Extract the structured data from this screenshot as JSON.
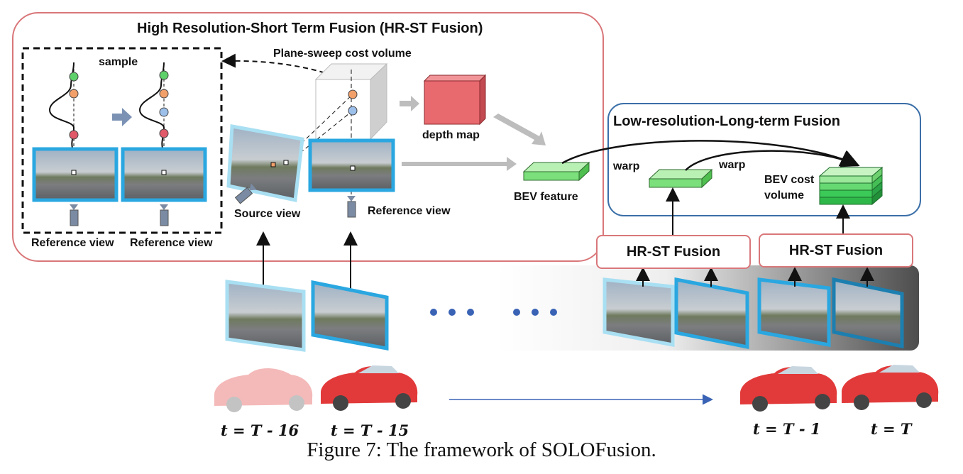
{
  "titles": {
    "hrst_box": "High Resolution-Short Term Fusion (HR-ST Fusion)",
    "lrlt_box": "Low-resolution-Long-term Fusion"
  },
  "labels": {
    "sample": "sample",
    "plane_sweep": "Plane-sweep cost volume",
    "depth_map": "depth map",
    "bev_feature": "BEV feature",
    "source_view": "Source view",
    "reference_view_main": "Reference view",
    "reference_view_left1": "Reference view",
    "reference_view_left2": "Reference view",
    "warp1": "warp",
    "warp2": "warp",
    "bev_cost_line1": "BEV cost",
    "bev_cost_line2": "volume"
  },
  "hrst_buttons": [
    "HR-ST Fusion",
    "HR-ST Fusion"
  ],
  "time_labels": [
    "t = T - 16",
    "t = T - 15",
    "t = T - 1",
    "t = T"
  ],
  "caption": "Figure 7: The framework of SOLOFusion.",
  "colors": {
    "hrst_border": "#d9777a",
    "lrlt_border": "#3b6fa8",
    "frame_blue": "#2aa7e0",
    "frame_light": "#a9dff2",
    "depth_red": "#e8696e",
    "bev_green": "#7be07b",
    "dot_blue": "#3a63b5",
    "car_red": "#e23a3a"
  }
}
